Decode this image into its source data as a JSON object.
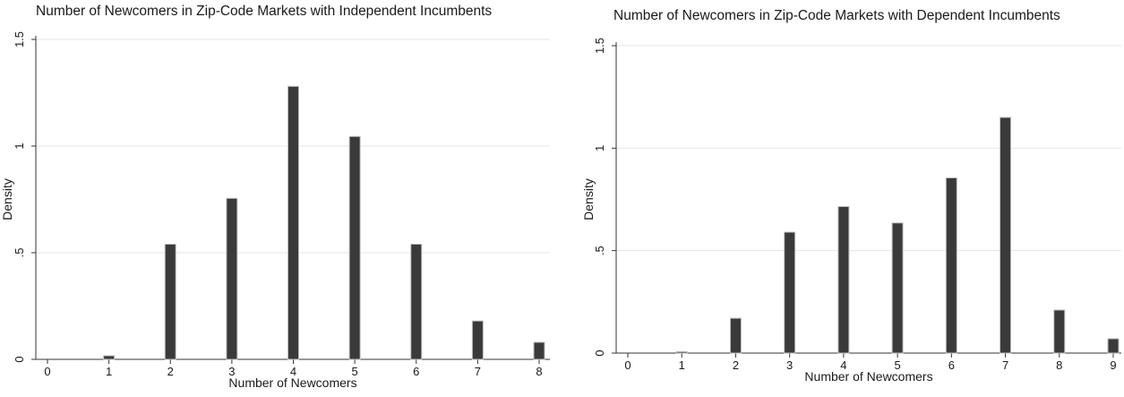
{
  "chart_data": [
    {
      "type": "bar",
      "title": "Number of Newcomers in Zip-Code Markets with Independent Incumbents",
      "xlabel": "Number of Newcomers",
      "ylabel": "Density",
      "x": [
        1,
        2,
        3,
        4,
        5,
        6,
        7,
        8
      ],
      "values": [
        0.017,
        0.54,
        0.755,
        1.28,
        1.045,
        0.54,
        0.18,
        0.08
      ],
      "xticks": [
        "0",
        "1",
        "2",
        "3",
        "4",
        "5",
        "6",
        "7",
        "8"
      ],
      "yticks": [
        {
          "value": 0,
          "label": "0"
        },
        {
          "value": 0.5,
          "label": ".5"
        },
        {
          "value": 1,
          "label": "1"
        },
        {
          "value": 1.5,
          "label": "1.5"
        }
      ],
      "xlim": [
        0,
        8
      ],
      "ylim": [
        0,
        1.5
      ],
      "grid": true,
      "bar_color": "#3a3a3a"
    },
    {
      "type": "bar",
      "title": "Number of Newcomers in Zip-Code Markets with Dependent Incumbents",
      "xlabel": "Number of Newcomers",
      "ylabel": "Density",
      "x": [
        1,
        2,
        3,
        4,
        5,
        6,
        7,
        8,
        9
      ],
      "values": [
        0.007,
        0.17,
        0.59,
        0.715,
        0.635,
        0.855,
        1.15,
        0.21,
        0.07
      ],
      "xticks": [
        "0",
        "1",
        "2",
        "3",
        "4",
        "5",
        "6",
        "7",
        "8",
        "9"
      ],
      "yticks": [
        {
          "value": 0,
          "label": "0"
        },
        {
          "value": 0.5,
          "label": ".5"
        },
        {
          "value": 1,
          "label": "1"
        },
        {
          "value": 1.5,
          "label": "1.5"
        }
      ],
      "xlim": [
        0,
        9
      ],
      "ylim": [
        0,
        1.5
      ],
      "grid": true,
      "bar_color": "#3a3a3a"
    }
  ]
}
